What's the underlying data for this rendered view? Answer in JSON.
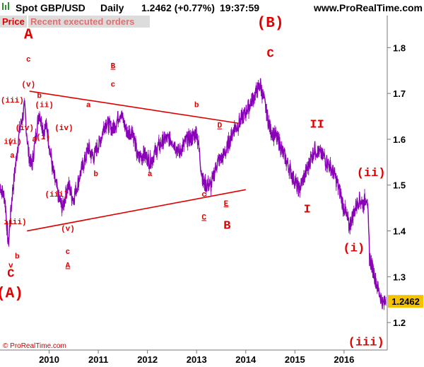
{
  "header": {
    "instrument": "Spot GBP/USD",
    "period": "Daily",
    "last": "1.2462 (+0.77%)",
    "time": "19:37:59",
    "site": "www.ProRealTime.com"
  },
  "toolbar": {
    "price_label": "Price",
    "orders_label": "Recent executed orders"
  },
  "copyright": "© ProRealTime.com",
  "colors": {
    "series": "#8a00b8",
    "annotation": "#e00000",
    "last_marker": "#f5c200"
  },
  "chart_data": {
    "type": "line",
    "title": "Spot GBP/USD Daily",
    "xlabel": "",
    "ylabel": "",
    "x_ticks": [
      "2010",
      "2011",
      "2012",
      "2013",
      "2014",
      "2015",
      "2016"
    ],
    "y_ticks": [
      1.2,
      1.3,
      1.4,
      1.5,
      1.6,
      1.7,
      1.8
    ],
    "xlim": [
      2009.0,
      2016.85
    ],
    "ylim": [
      1.14,
      1.87
    ],
    "grid": false,
    "last_value": "1.2462",
    "series": [
      {
        "x": [
          2009.0,
          2009.1,
          2009.17,
          2009.25,
          2009.4,
          2009.5,
          2009.58,
          2009.65,
          2009.72,
          2009.8,
          2009.88,
          2009.95,
          2010.05,
          2010.12,
          2010.2,
          2010.28,
          2010.38,
          2010.5,
          2010.62,
          2010.8,
          2010.9,
          2011.05,
          2011.15,
          2011.3,
          2011.45,
          2011.6,
          2011.7,
          2011.8,
          2011.93,
          2012.05,
          2012.2,
          2012.35,
          2012.5,
          2012.65,
          2012.8,
          2012.9,
          2013.0,
          2013.1,
          2013.15,
          2013.3,
          2013.42,
          2013.52,
          2013.62,
          2013.75,
          2013.9,
          2014.1,
          2014.3,
          2014.42,
          2014.5,
          2014.65,
          2014.8,
          2014.95,
          2015.08,
          2015.2,
          2015.3,
          2015.4,
          2015.5,
          2015.6,
          2015.72,
          2015.82,
          2015.9,
          2016.0,
          2016.1,
          2016.2,
          2016.3,
          2016.4,
          2016.47,
          2016.52,
          2016.6,
          2016.7,
          2016.8,
          2016.85
        ],
        "y": [
          1.5,
          1.47,
          1.37,
          1.48,
          1.62,
          1.67,
          1.57,
          1.54,
          1.6,
          1.66,
          1.62,
          1.63,
          1.55,
          1.51,
          1.47,
          1.45,
          1.5,
          1.47,
          1.52,
          1.58,
          1.56,
          1.6,
          1.64,
          1.62,
          1.66,
          1.61,
          1.62,
          1.56,
          1.57,
          1.55,
          1.58,
          1.6,
          1.6,
          1.57,
          1.6,
          1.6,
          1.62,
          1.53,
          1.5,
          1.5,
          1.55,
          1.56,
          1.58,
          1.62,
          1.64,
          1.68,
          1.72,
          1.66,
          1.62,
          1.6,
          1.56,
          1.52,
          1.49,
          1.52,
          1.55,
          1.58,
          1.57,
          1.56,
          1.54,
          1.52,
          1.49,
          1.45,
          1.41,
          1.44,
          1.47,
          1.46,
          1.48,
          1.34,
          1.31,
          1.27,
          1.24,
          1.2462
        ]
      }
    ],
    "trendlines": [
      {
        "from": [
          2009.6,
          1.705
        ],
        "to": [
          2013.85,
          1.635
        ]
      },
      {
        "from": [
          2009.55,
          1.4
        ],
        "to": [
          2014.0,
          1.49
        ]
      }
    ],
    "annotations": [
      {
        "text": "A",
        "x": 2009.58,
        "y": 1.82,
        "size": "xl"
      },
      {
        "text": "c",
        "x": 2009.58,
        "y": 1.77,
        "size": "s"
      },
      {
        "text": "(v)",
        "x": 2009.58,
        "y": 1.715,
        "size": "s"
      },
      {
        "text": "b",
        "x": 2009.8,
        "y": 1.69,
        "size": "s"
      },
      {
        "text": "(iii)",
        "x": 2009.25,
        "y": 1.68,
        "size": "s"
      },
      {
        "text": "(ii)",
        "x": 2009.9,
        "y": 1.67,
        "size": "s"
      },
      {
        "text": "(iv)",
        "x": 2009.5,
        "y": 1.62,
        "size": "s"
      },
      {
        "text": "a",
        "x": 2009.7,
        "y": 1.595,
        "size": "s"
      },
      {
        "text": "(i)",
        "x": 2009.88,
        "y": 1.6,
        "size": "s"
      },
      {
        "text": "(iv)",
        "x": 2010.3,
        "y": 1.62,
        "size": "s"
      },
      {
        "text": "iv",
        "x": 2009.1,
        "y": 1.59,
        "size": "s"
      },
      {
        "text": "(i)",
        "x": 2009.3,
        "y": 1.59,
        "size": "s"
      },
      {
        "text": "a",
        "x": 2009.25,
        "y": 1.56,
        "size": "s"
      },
      {
        "text": "(iii)",
        "x": 2010.15,
        "y": 1.475,
        "size": "s"
      },
      {
        "text": "ii",
        "x": 2009.1,
        "y": 1.415,
        "size": "s"
      },
      {
        "text": "(ii)",
        "x": 2009.35,
        "y": 1.415,
        "size": "s"
      },
      {
        "text": "b",
        "x": 2009.35,
        "y": 1.34,
        "size": "s"
      },
      {
        "text": "v",
        "x": 2009.22,
        "y": 1.32,
        "size": "s"
      },
      {
        "text": "C",
        "x": 2009.22,
        "y": 1.3,
        "size": "l"
      },
      {
        "text": "(A)",
        "x": 2009.2,
        "y": 1.255,
        "size": "xl"
      },
      {
        "text": "(v)",
        "x": 2010.38,
        "y": 1.4,
        "size": "s"
      },
      {
        "text": "c",
        "x": 2010.38,
        "y": 1.35,
        "size": "s"
      },
      {
        "text": "A",
        "x": 2010.38,
        "y": 1.32,
        "size": "s",
        "underline": true
      },
      {
        "text": "b",
        "x": 2010.95,
        "y": 1.52,
        "size": "s"
      },
      {
        "text": "a",
        "x": 2010.8,
        "y": 1.67,
        "size": "s"
      },
      {
        "text": "B",
        "x": 2011.3,
        "y": 1.755,
        "size": "s",
        "underline": true
      },
      {
        "text": "c",
        "x": 2011.3,
        "y": 1.715,
        "size": "s"
      },
      {
        "text": "a",
        "x": 2012.05,
        "y": 1.52,
        "size": "s"
      },
      {
        "text": "b",
        "x": 2013.0,
        "y": 1.67,
        "size": "s"
      },
      {
        "text": "D",
        "x": 2013.47,
        "y": 1.625,
        "size": "s",
        "underline": true
      },
      {
        "text": "c",
        "x": 2013.15,
        "y": 1.475,
        "size": "s"
      },
      {
        "text": "E",
        "x": 2013.6,
        "y": 1.455,
        "size": "s",
        "underline": true
      },
      {
        "text": "C",
        "x": 2013.15,
        "y": 1.425,
        "size": "s",
        "underline": true
      },
      {
        "text": "B",
        "x": 2013.62,
        "y": 1.405,
        "size": "l"
      },
      {
        "text": "(B)",
        "x": 2014.5,
        "y": 1.845,
        "size": "xl"
      },
      {
        "text": "C",
        "x": 2014.5,
        "y": 1.78,
        "size": "l"
      },
      {
        "text": "II",
        "x": 2015.45,
        "y": 1.625,
        "size": "l"
      },
      {
        "text": "I",
        "x": 2015.25,
        "y": 1.44,
        "size": "l"
      },
      {
        "text": "(ii)",
        "x": 2016.55,
        "y": 1.52,
        "size": "l"
      },
      {
        "text": "(i)",
        "x": 2016.2,
        "y": 1.355,
        "size": "l"
      },
      {
        "text": "(iii)",
        "x": 2016.45,
        "y": 1.15,
        "size": "l"
      }
    ]
  }
}
